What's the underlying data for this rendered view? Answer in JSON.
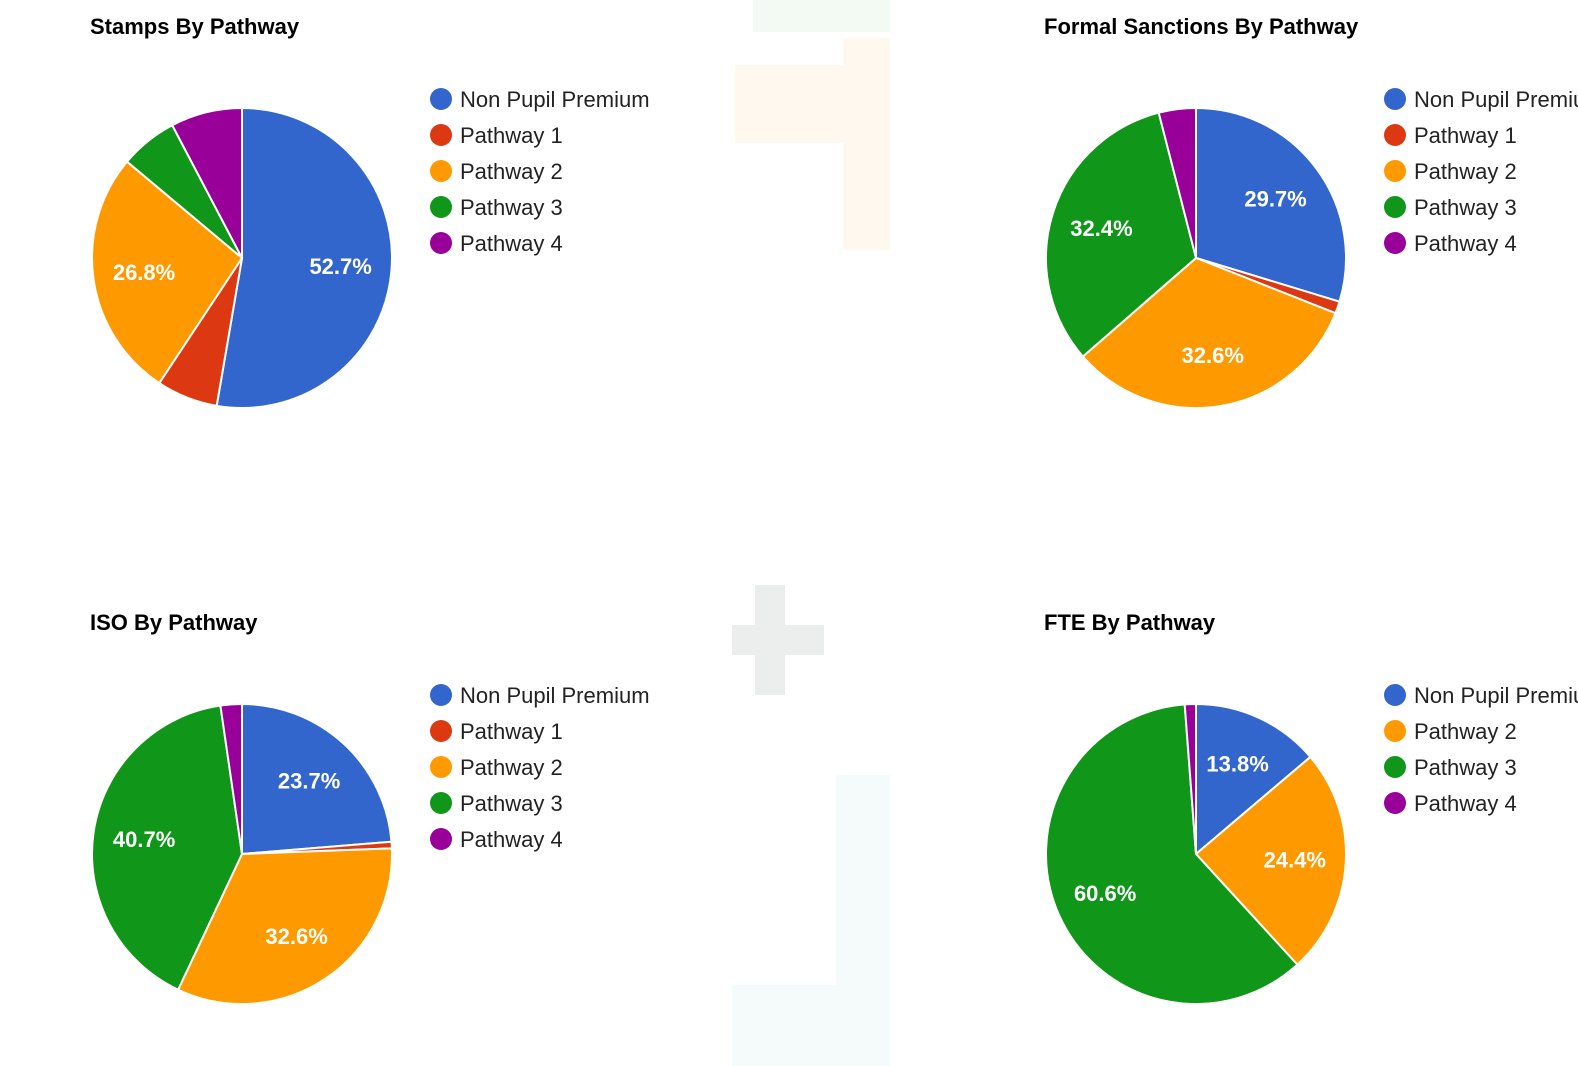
{
  "colors": {
    "Non Pupil Premium": "#3366cc",
    "Pathway 1": "#dc3912",
    "Pathway 2": "#ff9900",
    "Pathway 3": "#109618",
    "Pathway 4": "#990099"
  },
  "chart_data": [
    {
      "type": "pie",
      "title": "Stamps By Pathway",
      "legend_position": "right",
      "categories": [
        "Non Pupil Premium",
        "Pathway 1",
        "Pathway 2",
        "Pathway 3",
        "Pathway 4"
      ],
      "values": [
        52.7,
        6.6,
        26.8,
        6.2,
        7.7
      ],
      "labels": [
        "52.7%",
        "",
        "26.8%",
        "",
        ""
      ]
    },
    {
      "type": "pie",
      "title": "Formal Sanctions By Pathway",
      "legend_position": "right",
      "categories": [
        "Non Pupil Premium",
        "Pathway 1",
        "Pathway 2",
        "Pathway 3",
        "Pathway 4"
      ],
      "values": [
        29.7,
        1.3,
        32.6,
        32.4,
        4.0
      ],
      "labels": [
        "29.7%",
        "",
        "32.6%",
        "32.4%",
        ""
      ]
    },
    {
      "type": "pie",
      "title": "ISO By Pathway",
      "legend_position": "right",
      "categories": [
        "Non Pupil Premium",
        "Pathway 1",
        "Pathway 2",
        "Pathway 3",
        "Pathway 4"
      ],
      "values": [
        23.7,
        0.7,
        32.6,
        40.7,
        2.3
      ],
      "labels": [
        "23.7%",
        "",
        "32.6%",
        "40.7%",
        ""
      ]
    },
    {
      "type": "pie",
      "title": "FTE By Pathway",
      "legend_position": "right",
      "categories": [
        "Non Pupil Premium",
        "Pathway 2",
        "Pathway 3",
        "Pathway 4"
      ],
      "values": [
        13.8,
        24.4,
        60.6,
        1.2
      ],
      "labels": [
        "13.8%",
        "24.4%",
        "60.6%",
        ""
      ]
    }
  ]
}
